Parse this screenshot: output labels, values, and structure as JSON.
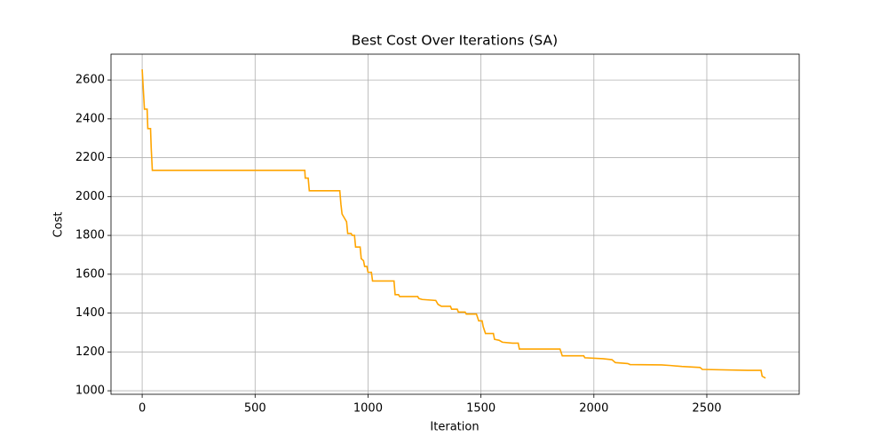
{
  "chart_data": {
    "type": "line",
    "title": "Best Cost Over Iterations (SA)",
    "x_label": "Iteration",
    "y_label": "Cost",
    "x": [
      0,
      10,
      22,
      25,
      37,
      40,
      45,
      720,
      722,
      735,
      740,
      875,
      880,
      885,
      895,
      905,
      910,
      925,
      930,
      940,
      945,
      965,
      970,
      980,
      985,
      995,
      1000,
      1015,
      1020,
      1115,
      1120,
      1135,
      1140,
      1220,
      1225,
      1240,
      1300,
      1310,
      1325,
      1365,
      1370,
      1395,
      1400,
      1430,
      1435,
      1480,
      1490,
      1505,
      1510,
      1520,
      1555,
      1560,
      1580,
      1595,
      1640,
      1665,
      1670,
      1850,
      1860,
      1955,
      1960,
      2040,
      2080,
      2095,
      2150,
      2160,
      2300,
      2340,
      2390,
      2470,
      2480,
      2680,
      2740,
      2745,
      2760
    ],
    "series": [
      {
        "name": "Best Cost",
        "color": "#ffa500",
        "values": [
          2655,
          2450,
          2450,
          2350,
          2350,
          2250,
          2135,
          2135,
          2095,
          2095,
          2030,
          2030,
          1960,
          1910,
          1890,
          1870,
          1810,
          1810,
          1800,
          1800,
          1740,
          1740,
          1680,
          1670,
          1640,
          1640,
          1610,
          1610,
          1565,
          1565,
          1495,
          1495,
          1485,
          1485,
          1475,
          1470,
          1465,
          1445,
          1435,
          1435,
          1420,
          1420,
          1405,
          1405,
          1395,
          1395,
          1360,
          1360,
          1330,
          1295,
          1295,
          1265,
          1260,
          1250,
          1245,
          1245,
          1215,
          1215,
          1180,
          1180,
          1170,
          1165,
          1160,
          1145,
          1140,
          1135,
          1133,
          1130,
          1125,
          1120,
          1110,
          1105,
          1105,
          1075,
          1065
        ]
      }
    ],
    "xlim": [
      -138,
      2909
    ],
    "ylim": [
      982,
      2733
    ],
    "xticks": [
      0,
      500,
      1000,
      1500,
      2000,
      2500
    ],
    "yticks": [
      1000,
      1200,
      1400,
      1600,
      1800,
      2000,
      2200,
      2400,
      2600
    ],
    "grid": true
  }
}
